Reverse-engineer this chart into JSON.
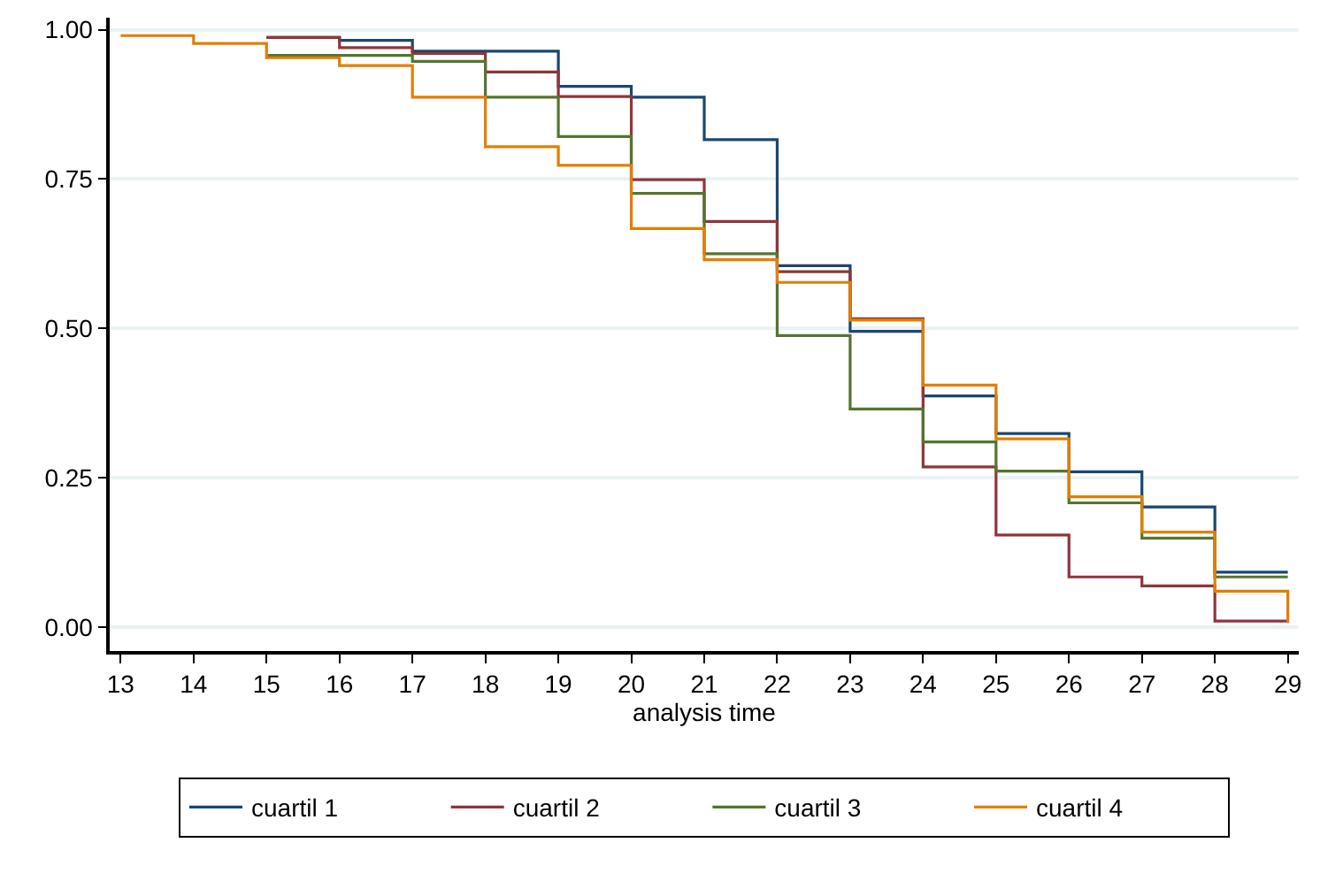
{
  "chart_data": {
    "type": "step",
    "xlabel": "analysis time",
    "x": [
      13,
      14,
      15,
      16,
      17,
      18,
      19,
      20,
      21,
      22,
      23,
      24,
      25,
      26,
      27,
      28,
      29
    ],
    "series": [
      {
        "name": "cuartil 1",
        "color": "#1a476f",
        "values": [
          null,
          null,
          0.987,
          0.982,
          0.964,
          0.964,
          0.905,
          0.887,
          0.816,
          0.605,
          0.495,
          0.387,
          0.324,
          0.26,
          0.201,
          0.092,
          0.092
        ]
      },
      {
        "name": "cuartil 2",
        "color": "#90353b",
        "values": [
          null,
          null,
          0.987,
          0.97,
          0.96,
          0.929,
          0.888,
          0.749,
          0.679,
          0.595,
          0.516,
          0.268,
          0.154,
          0.084,
          0.069,
          0.01,
          0.01
        ]
      },
      {
        "name": "cuartil 3",
        "color": "#55752f",
        "values": [
          null,
          null,
          0.957,
          0.957,
          0.947,
          0.887,
          0.821,
          0.726,
          0.625,
          0.488,
          0.365,
          0.31,
          0.261,
          0.208,
          0.149,
          0.084,
          0.084
        ]
      },
      {
        "name": "cuartil 4",
        "color": "#e37e00",
        "values": [
          0.99,
          0.977,
          0.953,
          0.94,
          0.887,
          0.804,
          0.773,
          0.667,
          0.615,
          0.577,
          0.514,
          0.405,
          0.315,
          0.218,
          0.159,
          0.06,
          0.007
        ]
      }
    ],
    "xlim": [
      12.85,
      29.15
    ],
    "xticks": [
      13,
      14,
      15,
      16,
      17,
      18,
      19,
      20,
      21,
      22,
      23,
      24,
      25,
      26,
      27,
      28,
      29
    ],
    "ylim": [
      -0.04,
      1.02
    ],
    "yticks": [
      {
        "value": 0,
        "label": "0.00"
      },
      {
        "value": 0.25,
        "label": "0.25"
      },
      {
        "value": 0.5,
        "label": "0.50"
      },
      {
        "value": 0.75,
        "label": "0.75"
      },
      {
        "value": 1,
        "label": "1.00"
      }
    ],
    "grid": "y",
    "legend": "bottom",
    "line_style": "solid",
    "marker": "none"
  }
}
